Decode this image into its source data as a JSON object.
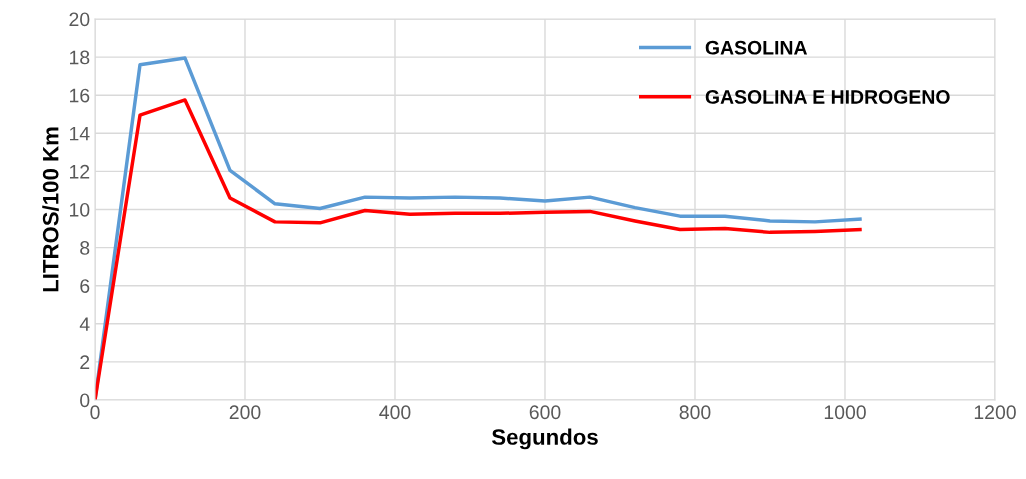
{
  "chart_data": {
    "type": "line",
    "xlabel": "Segundos",
    "ylabel": "LITROS/100 Km",
    "x": [
      0,
      60,
      120,
      180,
      240,
      300,
      360,
      420,
      480,
      540,
      600,
      660,
      720,
      780,
      840,
      900,
      960,
      1020
    ],
    "series": [
      {
        "name": "GASOLINA",
        "color": "#5b9bd5",
        "values": [
          0,
          17.6,
          17.95,
          12.05,
          10.3,
          10.05,
          10.65,
          10.6,
          10.65,
          10.6,
          10.45,
          10.65,
          10.1,
          9.65,
          9.65,
          9.4,
          9.35,
          9.5
        ]
      },
      {
        "name": "GASOLINA E HIDROGENO",
        "color": "#ff0000",
        "values": [
          0,
          14.95,
          15.75,
          10.6,
          9.35,
          9.3,
          9.95,
          9.75,
          9.8,
          9.8,
          9.85,
          9.9,
          9.4,
          8.95,
          9.0,
          8.8,
          8.85,
          8.95
        ]
      }
    ],
    "xlim": [
      0,
      1200
    ],
    "xticks": [
      0,
      200,
      400,
      600,
      800,
      1000,
      1200
    ],
    "ylim": [
      0,
      20
    ],
    "yticks": [
      0,
      2,
      4,
      6,
      8,
      10,
      12,
      14,
      16,
      18,
      20
    ],
    "grid": true,
    "legend": "top right",
    "marker": "none",
    "line_style": "solid"
  }
}
